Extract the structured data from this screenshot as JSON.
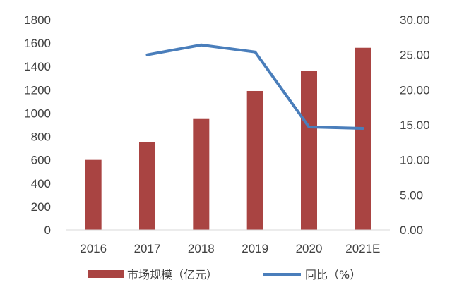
{
  "chart_data": {
    "type": "bar+line",
    "title": "",
    "categories": [
      "2016",
      "2017",
      "2018",
      "2019",
      "2020",
      "2021E"
    ],
    "series": [
      {
        "name": "市场规模（亿元）",
        "type": "bar",
        "axis": "left",
        "color": "#a94442",
        "values": [
          600,
          750,
          950,
          1190,
          1365,
          1560
        ]
      },
      {
        "name": "同比（%）",
        "type": "line",
        "axis": "right",
        "color": "#4a7ebb",
        "values": [
          null,
          25.0,
          26.4,
          25.4,
          14.7,
          14.5
        ]
      }
    ],
    "y_left": {
      "min": 0,
      "max": 1800,
      "step": 200,
      "ticks": [
        "0",
        "200",
        "400",
        "600",
        "800",
        "1000",
        "1200",
        "1400",
        "1600",
        "1800"
      ]
    },
    "y_right": {
      "min": 0,
      "max": 30,
      "step": 5,
      "ticks": [
        "0.00",
        "5.00",
        "10.00",
        "15.00",
        "20.00",
        "25.00",
        "30.00"
      ]
    },
    "grid": false,
    "legend_position": "bottom"
  }
}
